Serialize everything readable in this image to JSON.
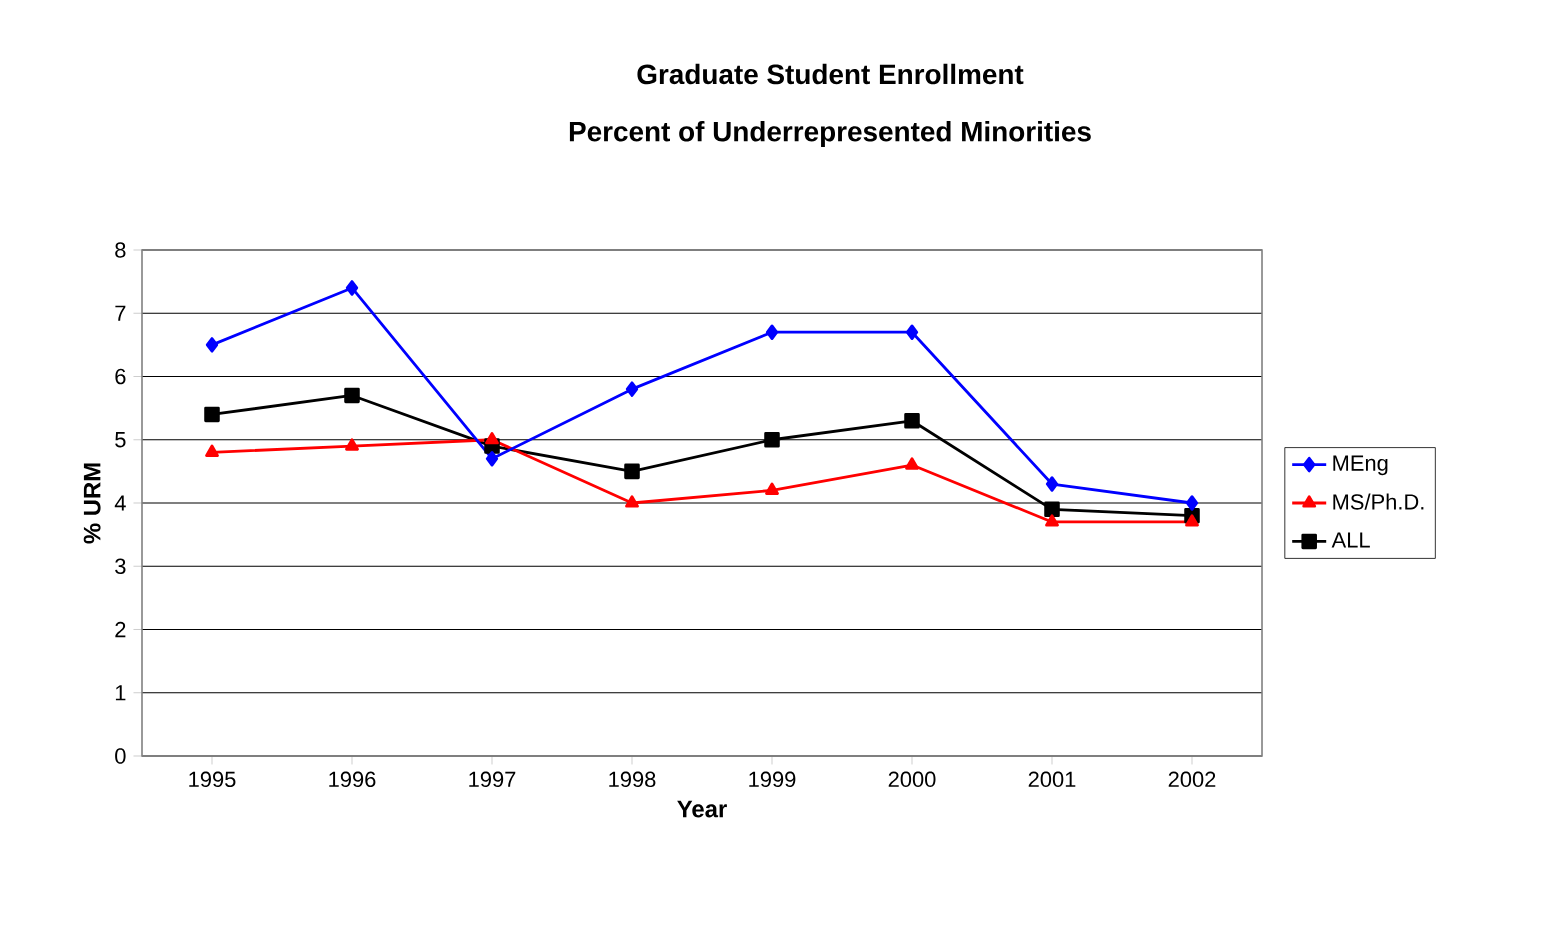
{
  "chart_data": {
    "type": "line",
    "title": "Graduate Student Enrollment",
    "subtitle": "Percent of Underrepresented Minorities",
    "xlabel": "Year",
    "ylabel": "% URM",
    "categories": [
      "1995",
      "1996",
      "1997",
      "1998",
      "1999",
      "2000",
      "2001",
      "2002"
    ],
    "series": [
      {
        "name": "MEng",
        "color": "#0000ff",
        "marker": "diamond",
        "values": [
          6.5,
          7.4,
          4.7,
          5.8,
          6.7,
          6.7,
          4.3,
          4.0
        ]
      },
      {
        "name": "MS/Ph.D.",
        "color": "#ff0000",
        "marker": "triangle",
        "values": [
          4.8,
          4.9,
          5.0,
          4.0,
          4.2,
          4.6,
          3.7,
          3.7
        ]
      },
      {
        "name": "ALL",
        "color": "#000000",
        "marker": "square",
        "values": [
          5.4,
          5.7,
          4.9,
          4.5,
          5.0,
          5.3,
          3.9,
          3.8
        ]
      }
    ],
    "ylim": [
      0,
      8
    ],
    "yticks": [
      0,
      1,
      2,
      3,
      4,
      5,
      6,
      7,
      8
    ],
    "grid": "y",
    "legend": "right"
  }
}
